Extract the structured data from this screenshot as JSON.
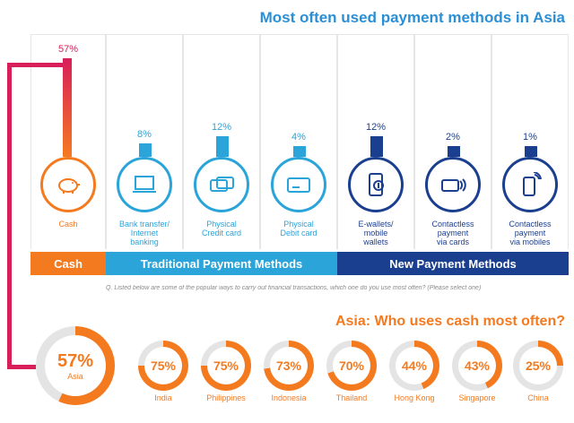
{
  "title": "Most often used payment methods in Asia",
  "subtitle": "Asia: Who uses cash most often?",
  "footnote": "Q. Listed below are some of the popular ways to carry out financial transactions, which one do you use most often? (Please select one)",
  "colors": {
    "cash": "#f47a20",
    "traditional": "#2aa4d9",
    "new": "#1b3f8f",
    "accent_line": "#d81f5a",
    "ring_track": "#e4e4e4",
    "title": "#2b8fd6"
  },
  "categories": {
    "cash": "Cash",
    "traditional": "Traditional Payment Methods",
    "new": "New Payment Methods"
  },
  "chart_data": [
    {
      "type": "bar",
      "title": "Most often used payment methods in Asia",
      "categories": [
        "Cash",
        "Bank transfer/ Internet banking",
        "Physical Credit card",
        "Physical Debit card",
        "E-wallets/ mobile wallets",
        "Contactless payment via cards",
        "Contactless payment via mobiles"
      ],
      "values": [
        57,
        8,
        12,
        4,
        12,
        2,
        1
      ],
      "value_labels": [
        "57%",
        "8%",
        "12%",
        "4%",
        "12%",
        "2%",
        "1%"
      ],
      "groups": [
        "Cash",
        "Traditional Payment Methods",
        "Traditional Payment Methods",
        "Traditional Payment Methods",
        "New Payment Methods",
        "New Payment Methods",
        "New Payment Methods"
      ],
      "icons": [
        "piggy-bank-icon",
        "laptop-icon",
        "credit-card-icon",
        "debit-card-icon",
        "smartphone-wallet-icon",
        "contactless-card-icon",
        "contactless-phone-icon"
      ],
      "label_lines": [
        [
          "Cash"
        ],
        [
          "Bank transfer/",
          "Internet",
          "banking"
        ],
        [
          "Physical",
          "Credit card"
        ],
        [
          "Physical",
          "Debit card"
        ],
        [
          "E-wallets/",
          "mobile",
          "wallets"
        ],
        [
          "Contactless",
          "payment",
          "via cards"
        ],
        [
          "Contactless",
          "payment",
          "via mobiles"
        ]
      ],
      "ylim": [
        0,
        57
      ]
    },
    {
      "type": "pie",
      "title": "Asia: Who uses cash most often?",
      "categories": [
        "Asia",
        "India",
        "Philippines",
        "Indonesia",
        "Thailand",
        "Hong Kong",
        "Singapore",
        "China"
      ],
      "values": [
        57,
        75,
        75,
        73,
        70,
        44,
        43,
        25
      ],
      "value_labels": [
        "57%",
        "75%",
        "75%",
        "73%",
        "70%",
        "44%",
        "43%",
        "25%"
      ]
    }
  ]
}
